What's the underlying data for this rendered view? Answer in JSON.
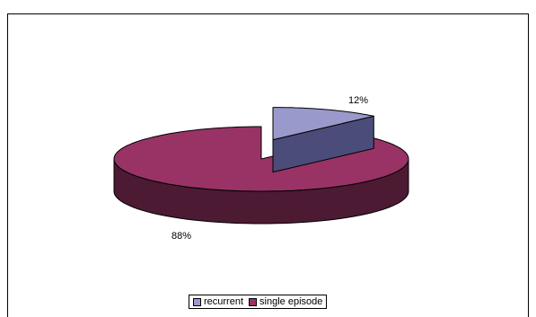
{
  "chart_data": {
    "type": "pie",
    "style": "3d-exploded",
    "title": "",
    "categories": [
      "recurrent",
      "single episode"
    ],
    "values": [
      12,
      88
    ],
    "labels": [
      "12%",
      "88%"
    ],
    "colors": {
      "recurrent_top": "#9999cc",
      "recurrent_side": "#4c4c7a",
      "single_top": "#993366",
      "single_side": "#4d1a33"
    },
    "legend": {
      "placement": "bottom",
      "entries": [
        "recurrent",
        "single episode"
      ]
    }
  }
}
